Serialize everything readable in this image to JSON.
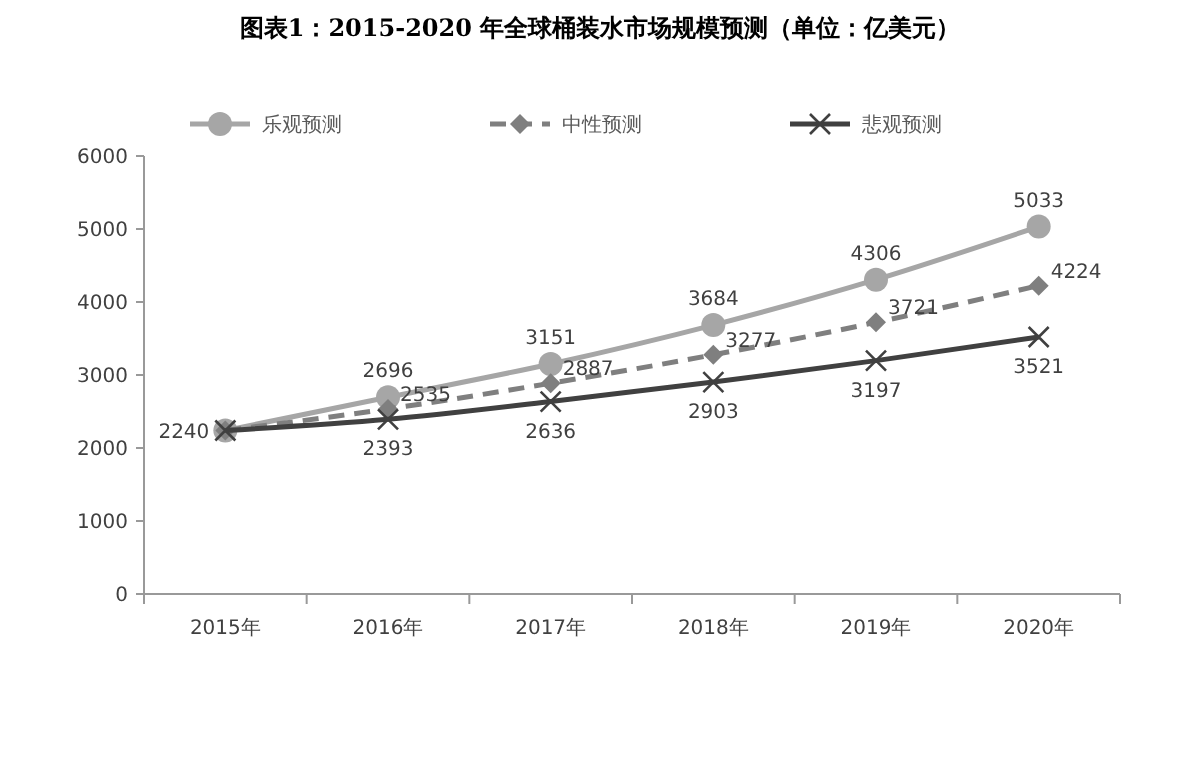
{
  "chart_data": {
    "type": "line",
    "title": "图表1：2015-2020 年全球桶装水市场规模预测（单位：亿美元）",
    "categories": [
      "2015年",
      "2016年",
      "2017年",
      "2018年",
      "2019年",
      "2020年"
    ],
    "ylim": [
      0,
      6000
    ],
    "yticks": [
      0,
      1000,
      2000,
      3000,
      4000,
      5000,
      6000
    ],
    "grid": false,
    "legend": "top",
    "series": [
      {
        "name": "乐观预测",
        "color": "#a6a6a6",
        "marker": "circle",
        "line_style": "solid",
        "values": [
          2240,
          2696,
          3151,
          3684,
          4306,
          5033
        ],
        "value_labels": [
          null,
          "2696",
          "3151",
          "3684",
          "4306",
          "5033"
        ]
      },
      {
        "name": "中性预测",
        "color": "#7f7f7f",
        "marker": "diamond",
        "line_style": "dashed",
        "values": [
          2240,
          2535,
          2887,
          3277,
          3721,
          4224
        ],
        "value_labels": [
          null,
          "2535",
          "2887",
          "3277",
          "3721",
          "4224"
        ]
      },
      {
        "name": "悲观预测",
        "color": "#404040",
        "marker": "cross",
        "line_style": "solid",
        "values": [
          2240,
          2393,
          2636,
          2903,
          3197,
          3521
        ],
        "value_labels": [
          "2240",
          "2393",
          "2636",
          "2903",
          "3197",
          "3521"
        ]
      }
    ]
  }
}
